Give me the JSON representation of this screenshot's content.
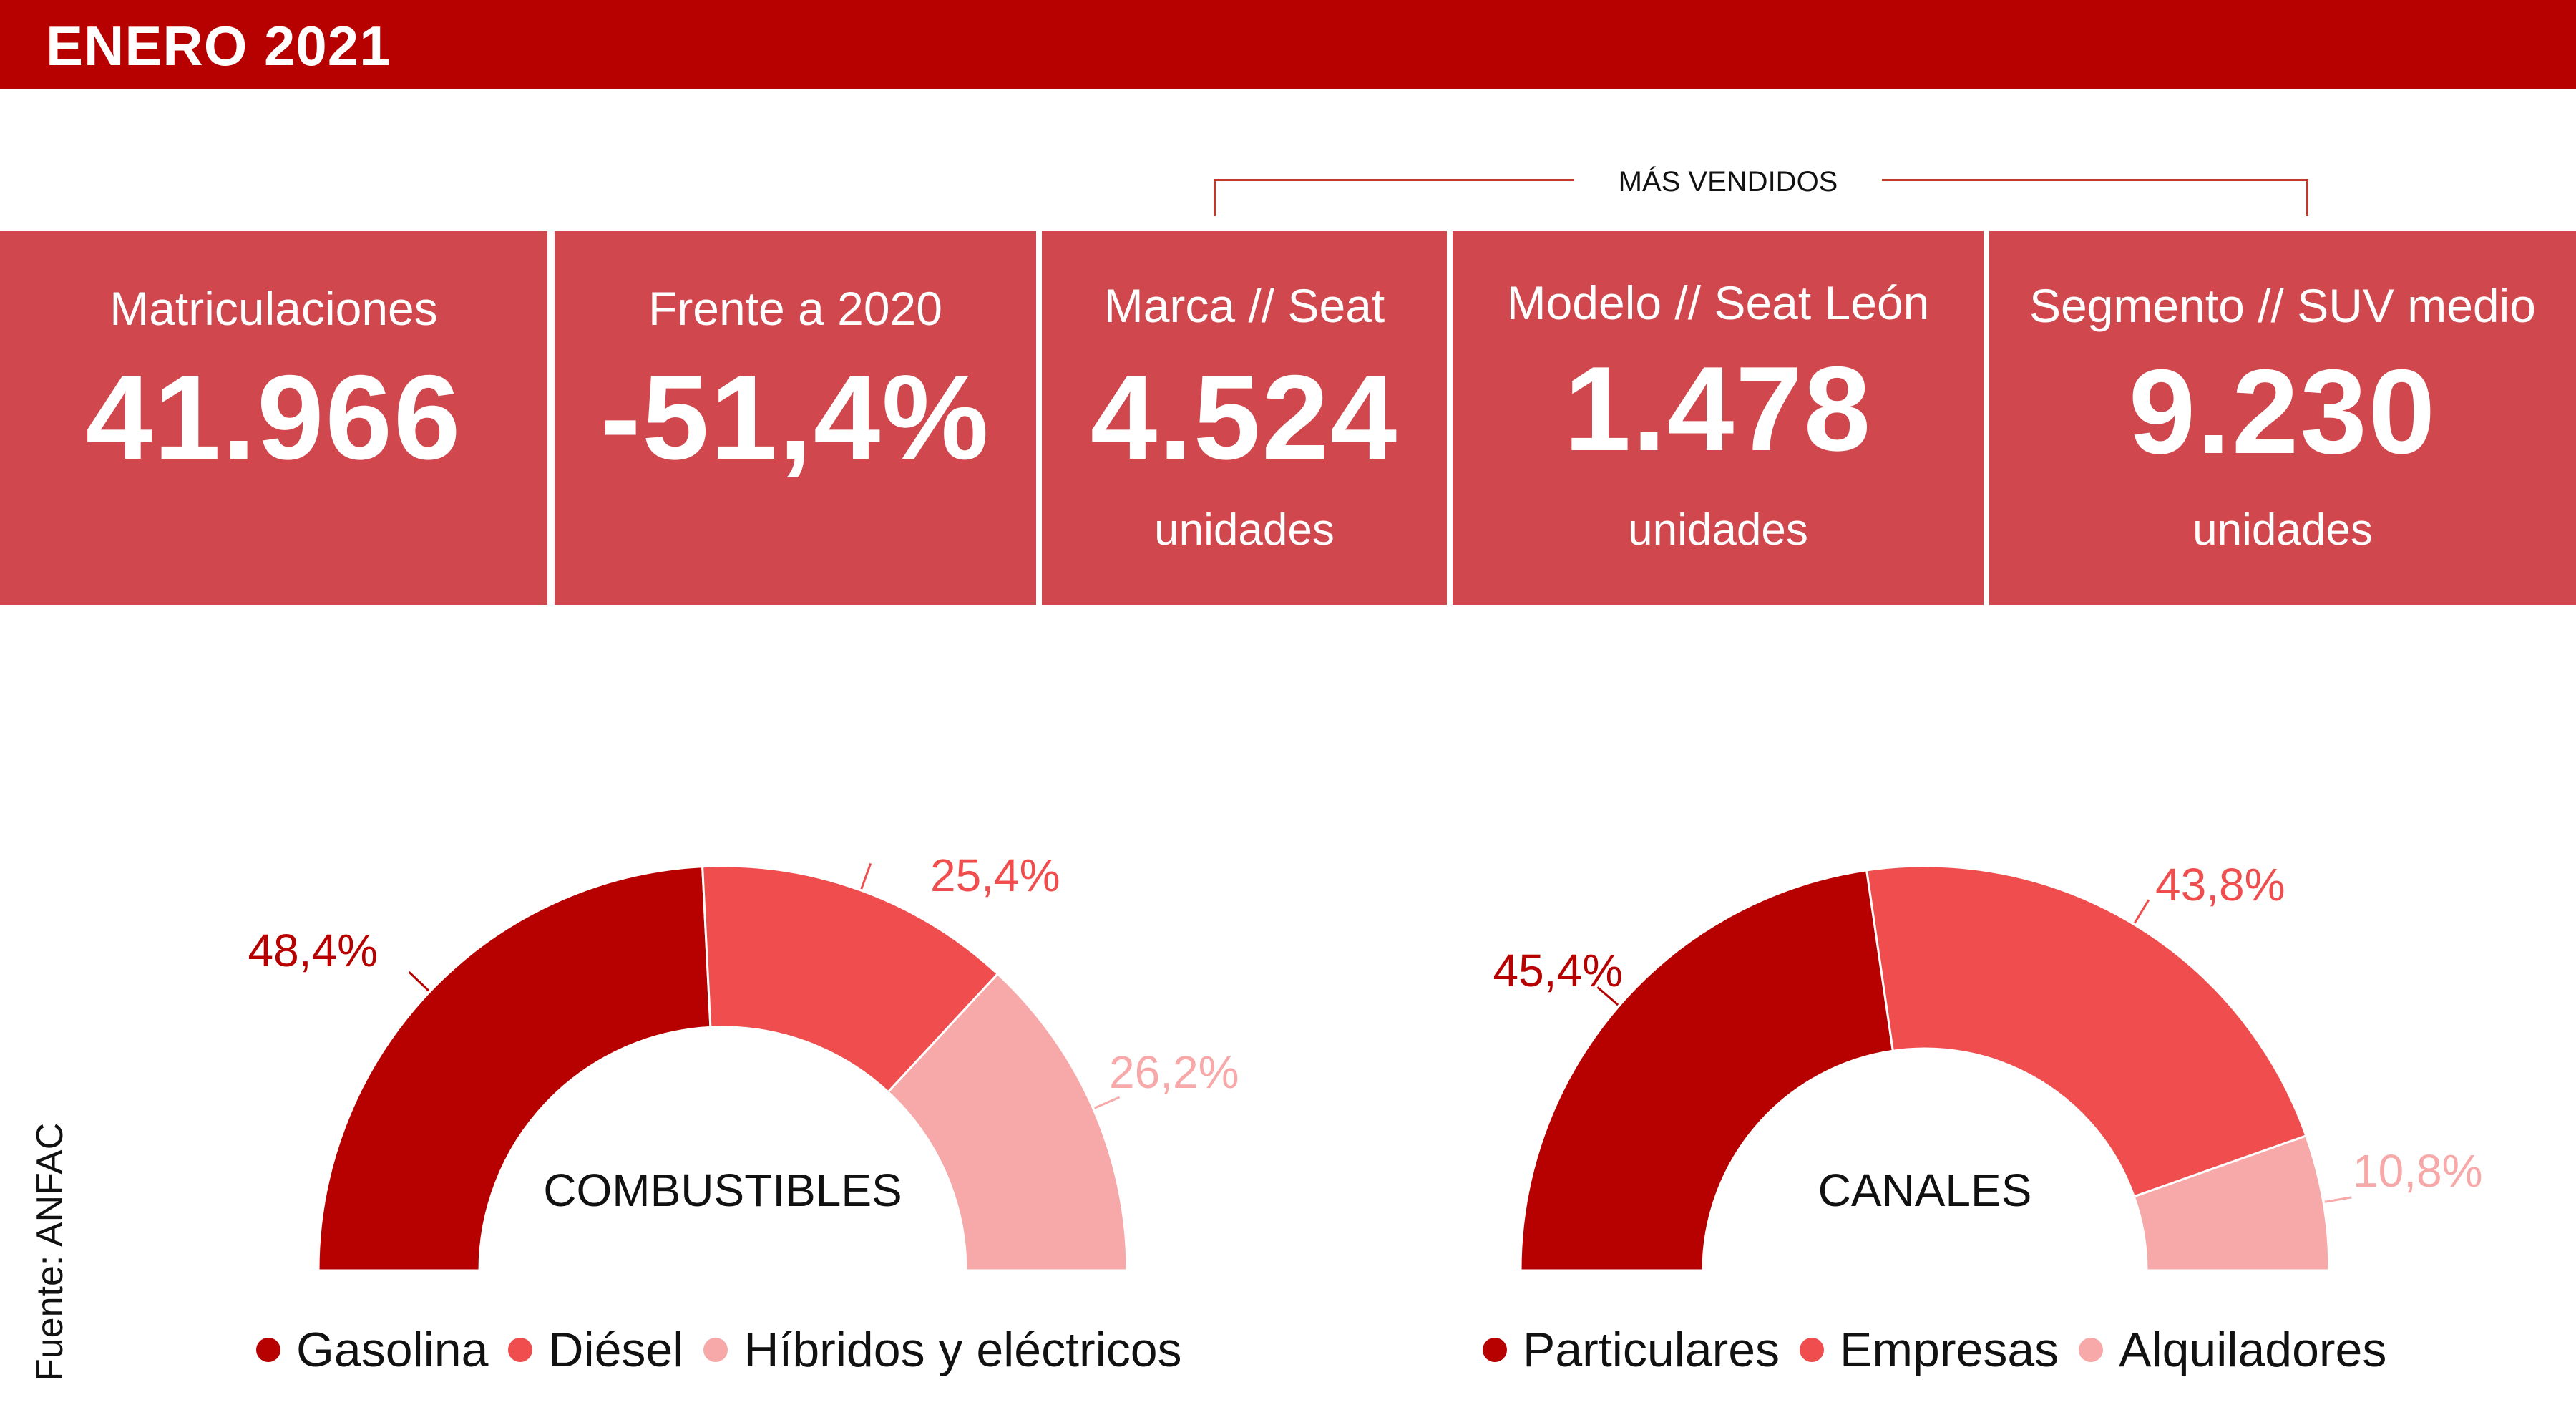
{
  "header": {
    "title": "ENERO 2021"
  },
  "bracket": {
    "label": "MÁS VENDIDOS"
  },
  "stats": [
    {
      "label": "Matriculaciones",
      "value": "41.966",
      "unit": ""
    },
    {
      "label": "Frente a 2020",
      "value": "-51,4%",
      "unit": ""
    },
    {
      "label": "Marca // Seat",
      "value": "4.524",
      "unit": "unidades"
    },
    {
      "label": "Modelo // Seat León",
      "value": "1.478",
      "unit": "unidades"
    },
    {
      "label": "Segmento // SUV medio",
      "value": "9.230",
      "unit": "unidades"
    }
  ],
  "source": "Fuente: ANFAC",
  "colors": {
    "dark": "#b70000",
    "mid": "#f04e4e",
    "light": "#f7a8a8",
    "stat_bg": "#d0484d"
  },
  "chart_data": [
    {
      "type": "pie",
      "variant": "semi-donut",
      "title": "COMBUSTIBLES",
      "categories": [
        "Gasolina",
        "Diésel",
        "Híbridos y eléctricos"
      ],
      "values": [
        48.4,
        25.4,
        26.2
      ],
      "labels": [
        "48,4%",
        "25,4%",
        "26,2%"
      ],
      "legend_position": "bottom"
    },
    {
      "type": "pie",
      "variant": "semi-donut",
      "title": "CANALES",
      "categories": [
        "Particulares",
        "Empresas",
        "Alquiladores"
      ],
      "values": [
        45.4,
        43.8,
        10.8
      ],
      "labels": [
        "45,4%",
        "43,8%",
        "10,8%"
      ],
      "legend_position": "bottom"
    }
  ]
}
